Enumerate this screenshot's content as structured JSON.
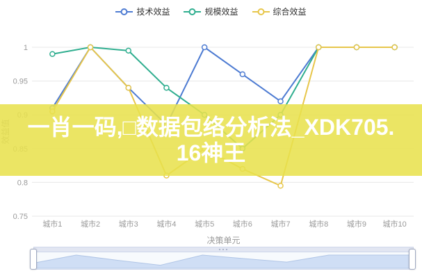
{
  "legend": {
    "items": [
      {
        "label": "技术效益",
        "color": "#4d7bd2"
      },
      {
        "label": "规模效益",
        "color": "#2fae8f"
      },
      {
        "label": "综合效益",
        "color": "#e7c64a"
      }
    ]
  },
  "watermark": {
    "line1": "一肖一码,□数据包络分析法_XDK705.",
    "line2": "16神王",
    "full_text": "一肖一码,□数据包络分析法_XDK705.16神王",
    "band_color": "rgba(232,225,77,0.87)",
    "text_color": "#ffffff"
  },
  "chart_data": {
    "type": "line",
    "title": "",
    "categories": [
      "城市1",
      "城市2",
      "城市3",
      "城市4",
      "城市5",
      "城市6",
      "城市7",
      "城市8",
      "城市9",
      "城市10"
    ],
    "series": [
      {
        "name": "技术效益",
        "color": "#4d7bd2",
        "values": [
          0.91,
          1.0,
          0.94,
          0.885,
          1.0,
          0.96,
          0.92,
          1.0,
          1.0,
          1.0
        ]
      },
      {
        "name": "规模效益",
        "color": "#2fae8f",
        "values": [
          0.99,
          1.0,
          0.995,
          0.94,
          0.9,
          0.85,
          0.9,
          1.0,
          1.0,
          1.0
        ]
      },
      {
        "name": "综合效益",
        "color": "#e7c64a",
        "values": [
          0.905,
          1.0,
          0.94,
          0.81,
          0.85,
          0.82,
          0.795,
          1.0,
          1.0,
          1.0
        ]
      }
    ],
    "xlabel": "决策单元",
    "ylabel": "效益值",
    "ylim": [
      0.75,
      1.0
    ],
    "yticks": [
      "1",
      "0.95",
      "0.9",
      "0.85",
      "0.8",
      "0.75"
    ],
    "grid": true,
    "legend_position": "top",
    "symbol": "hollow-circle",
    "datazoom": {
      "present": true,
      "range": "full"
    }
  },
  "colors": {
    "grid_line": "#e7e7e7",
    "tick_text": "#999999",
    "axis_name_text": "#999999",
    "dz_fill": "#cfdef5",
    "dz_stroke": "#b0c5e6"
  }
}
